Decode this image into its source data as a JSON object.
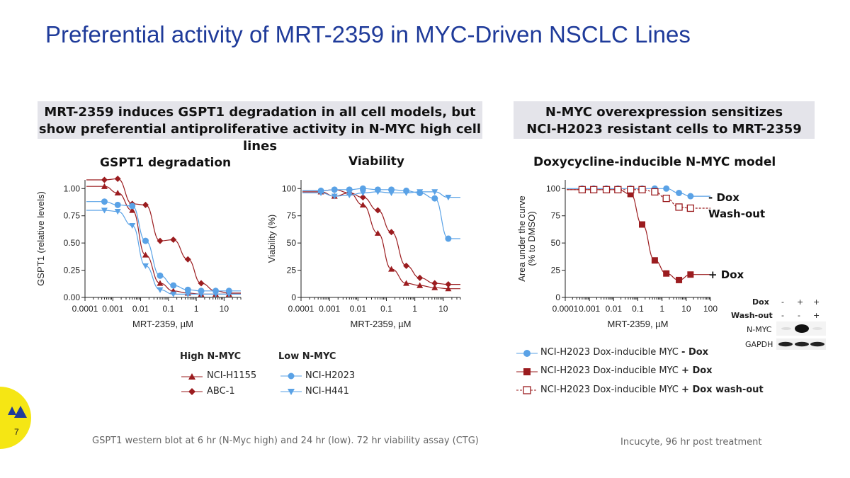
{
  "slide": {
    "title": "Preferential activity of MRT-2359 in MYC-Driven NSCLC Lines",
    "page_number": "7",
    "banner_left": [
      "MRT-2359 induces GSPT1 degradation in all cell models, but",
      "show preferential antiproliferative activity in N-MYC high cell lines"
    ],
    "banner_right": [
      "N-MYC overexpression sensitizes",
      "NCI-H2023 resistant cells to MRT-2359"
    ],
    "panel_titles": {
      "gspt1": "GSPT1 degradation",
      "viability": "Viability",
      "nmyc": "Doxycycline-inducible N-MYC model"
    },
    "legend_left": {
      "high_heading": "High N-MYC",
      "low_heading": "Low N-MYC",
      "items": [
        "NCI-H1155",
        "ABC-1",
        "NCI-H2023",
        "NCI-H441"
      ]
    },
    "legend_right": {
      "items": [
        {
          "prefix": "NCI-H2023 Dox-inducible MYC ",
          "suffix": "- Dox"
        },
        {
          "prefix": "NCI-H2023 Dox-inducible MYC ",
          "suffix": "+ Dox"
        },
        {
          "prefix": "NCI-H2023 Dox-inducible MYC ",
          "suffix": "+ Dox wash-out"
        }
      ]
    },
    "curve_labels": {
      "minus_dox": "- Dox",
      "washout": "Wash-out",
      "plus_dox": "+ Dox"
    },
    "blot": {
      "row_labels": [
        "Dox",
        "Wash-out"
      ],
      "dox_signs": [
        "-",
        "+",
        "+"
      ],
      "washout_signs": [
        "-",
        "-",
        "+"
      ],
      "band_labels": [
        "N-MYC",
        "GAPDH"
      ]
    },
    "footnote_left": "GSPT1 western blot at 6 hr (N-Myc high) and 24 hr (low). 72 hr viability assay (CTG)",
    "footnote_right": "Incucyte, 96 hr post treatment"
  },
  "colors": {
    "high_nmyc": "#9b1c1f",
    "low_nmyc": "#5aa2e6",
    "title": "#1f3b9a",
    "accent_yellow": "#f5e614"
  },
  "chart_data": [
    {
      "type": "scatter",
      "title": "",
      "xlabel": "MRT-2359, µM",
      "ylabel": "GSPT1 (relative levels)",
      "xscale": "log",
      "xlim": [
        0.0001,
        40
      ],
      "ylim": [
        0,
        1.08
      ],
      "xticks": [
        "0.0001",
        "0.001",
        "0.01",
        "0.1",
        "1",
        "10"
      ],
      "yticks": [
        "0.00",
        "0.25",
        "0.50",
        "0.75",
        "1.00"
      ],
      "series": [
        {
          "name": "NCI-H1155",
          "marker": "triangle-up",
          "color": "#9b1c1f",
          "x": [
            0.0005,
            0.0015,
            0.005,
            0.015,
            0.05,
            0.15,
            0.5,
            1.5,
            5,
            15
          ],
          "y": [
            1.02,
            0.96,
            0.8,
            0.39,
            0.13,
            0.06,
            0.04,
            0.03,
            0.03,
            0.03
          ]
        },
        {
          "name": "ABC-1",
          "marker": "diamond",
          "color": "#9b1c1f",
          "x": [
            0.0005,
            0.0015,
            0.005,
            0.015,
            0.05,
            0.15,
            0.5,
            1.5,
            5,
            15
          ],
          "y": [
            1.08,
            1.09,
            0.86,
            0.85,
            0.52,
            0.53,
            0.35,
            0.13,
            0.06,
            0.04
          ]
        },
        {
          "name": "NCI-H2023",
          "marker": "circle",
          "color": "#5aa2e6",
          "x": [
            0.0005,
            0.0015,
            0.005,
            0.015,
            0.05,
            0.15,
            0.5,
            1.5,
            5,
            15
          ],
          "y": [
            0.88,
            0.85,
            0.84,
            0.52,
            0.2,
            0.11,
            0.07,
            0.06,
            0.06,
            0.06
          ]
        },
        {
          "name": "NCI-H441",
          "marker": "triangle-down",
          "color": "#5aa2e6",
          "x": [
            0.0005,
            0.0015,
            0.005,
            0.015,
            0.05,
            0.15,
            0.5,
            1.5,
            5,
            15
          ],
          "y": [
            0.8,
            0.79,
            0.66,
            0.29,
            0.07,
            0.03,
            0.03,
            0.03,
            0.03,
            0.03
          ]
        }
      ]
    },
    {
      "type": "scatter",
      "title": "",
      "xlabel": "MRT-2359, µM",
      "ylabel": "Viability (%)",
      "xscale": "log",
      "xlim": [
        0.0001,
        40
      ],
      "ylim": [
        0,
        108
      ],
      "xticks": [
        "0.0001",
        "0.001",
        "0.01",
        "0.1",
        "1",
        "10"
      ],
      "yticks": [
        "0",
        "25",
        "50",
        "75",
        "100"
      ],
      "series": [
        {
          "name": "NCI-H1155",
          "marker": "triangle-up",
          "color": "#9b1c1f",
          "x": [
            0.0005,
            0.0015,
            0.005,
            0.015,
            0.05,
            0.15,
            0.5,
            1.5,
            5,
            15
          ],
          "y": [
            97,
            93,
            96,
            85,
            59,
            26,
            13,
            11,
            9,
            8
          ]
        },
        {
          "name": "ABC-1",
          "marker": "diamond",
          "color": "#9b1c1f",
          "x": [
            0.0005,
            0.0015,
            0.005,
            0.015,
            0.05,
            0.15,
            0.5,
            1.5,
            5,
            15
          ],
          "y": [
            98,
            99,
            96,
            92,
            80,
            60,
            29,
            18,
            13,
            12
          ]
        },
        {
          "name": "NCI-H2023",
          "marker": "circle",
          "color": "#5aa2e6",
          "x": [
            0.0005,
            0.0015,
            0.005,
            0.015,
            0.05,
            0.15,
            0.5,
            1.5,
            5,
            15
          ],
          "y": [
            98,
            99,
            99,
            100,
            99,
            99,
            98,
            96,
            91,
            54
          ]
        },
        {
          "name": "NCI-H441",
          "marker": "triangle-down",
          "color": "#5aa2e6",
          "x": [
            0.0005,
            0.0015,
            0.005,
            0.015,
            0.05,
            0.15,
            0.5,
            1.5,
            5,
            15
          ],
          "y": [
            96,
            93,
            94,
            96,
            97,
            96,
            96,
            97,
            97,
            92
          ]
        }
      ]
    },
    {
      "type": "scatter",
      "title": "",
      "xlabel": "MRT-2359, µM",
      "ylabel": "Area under the curve\n(% to DMSO)",
      "xscale": "log",
      "xlim": [
        0.0001,
        100
      ],
      "ylim": [
        0,
        108
      ],
      "xticks": [
        "0.0001",
        "0.001",
        "0.01",
        "0.1",
        "1",
        "10",
        "100"
      ],
      "yticks": [
        "0",
        "25",
        "50",
        "75",
        "100"
      ],
      "series": [
        {
          "name": "NCI-H2023 Dox-inducible MYC - Dox",
          "marker": "circle",
          "color": "#5aa2e6",
          "x": [
            0.0005,
            0.0015,
            0.005,
            0.015,
            0.05,
            0.15,
            0.5,
            1.5,
            5,
            15
          ],
          "y": [
            100,
            100,
            100,
            100,
            100,
            100,
            100,
            100,
            96,
            93
          ]
        },
        {
          "name": "NCI-H2023 Dox-inducible MYC + Dox",
          "marker": "square",
          "color": "#9b1c1f",
          "x": [
            0.0005,
            0.0015,
            0.005,
            0.015,
            0.05,
            0.15,
            0.5,
            1.5,
            5,
            15
          ],
          "y": [
            99,
            99,
            99,
            99,
            95,
            67,
            34,
            22,
            16,
            21
          ]
        },
        {
          "name": "NCI-H2023 Dox-inducible MYC + Dox wash-out",
          "marker": "open-square",
          "color": "#9b1c1f",
          "x": [
            0.0005,
            0.0015,
            0.005,
            0.015,
            0.05,
            0.15,
            0.5,
            1.5,
            5,
            15
          ],
          "y": [
            99,
            99,
            99,
            99,
            99,
            99,
            97,
            91,
            83,
            82
          ]
        }
      ]
    }
  ]
}
